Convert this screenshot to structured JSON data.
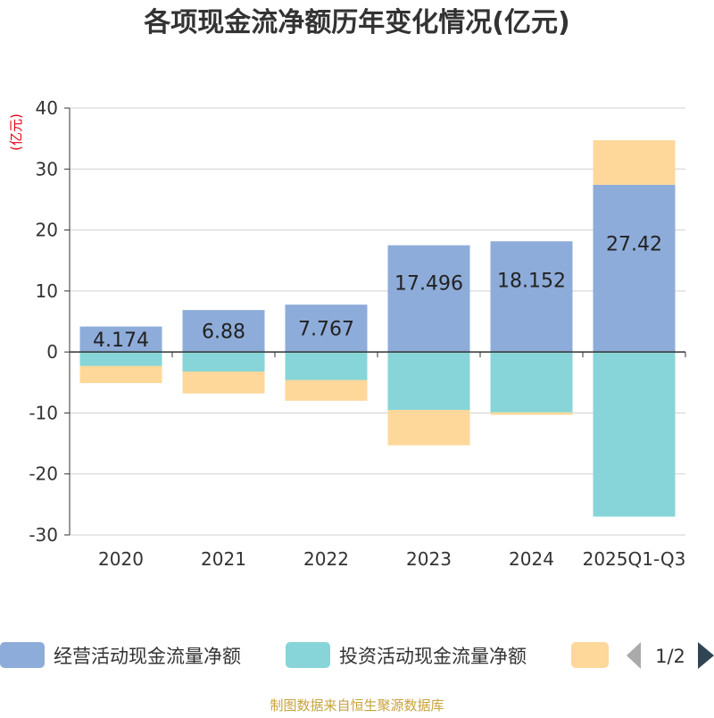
{
  "chart_data": {
    "type": "bar",
    "stacked": true,
    "title": "各项现金流净额历年变化情况(亿元)",
    "ylabel": "(亿元)",
    "xlabel": "",
    "categories": [
      "2020",
      "2021",
      "2022",
      "2023",
      "2024",
      "2025Q1-Q3"
    ],
    "ylim": [
      -30,
      40
    ],
    "yticks": [
      -30,
      -20,
      -10,
      0,
      10,
      20,
      30,
      40
    ],
    "grid": true,
    "series": [
      {
        "name": "经营活动现金流量净额",
        "color": "#8eacd9",
        "values": [
          4.174,
          6.88,
          7.767,
          17.496,
          18.152,
          27.42
        ],
        "labels": [
          "4.174",
          "6.88",
          "7.767",
          "17.496",
          "18.152",
          "27.42"
        ]
      },
      {
        "name": "投资活动现金流量净额",
        "color": "#87d5d8",
        "values": [
          -2.3,
          -3.2,
          -4.6,
          -9.5,
          -9.9,
          -27.0
        ]
      },
      {
        "name": "",
        "color": "#fed89a",
        "values": [
          -2.8,
          -3.6,
          -3.4,
          -5.8,
          -0.4,
          7.3
        ]
      }
    ],
    "legend": {
      "position": "bottom",
      "page": "1/2"
    }
  },
  "source": "制图数据来自恒生聚源数据库"
}
